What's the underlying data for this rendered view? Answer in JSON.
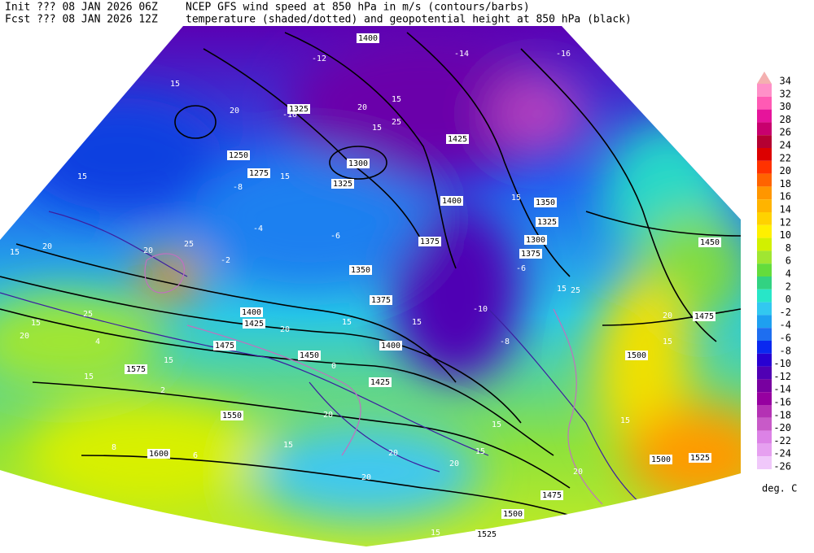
{
  "header": {
    "line1_left": "Init  ??? 08 JAN 2026 06Z",
    "line1_right": "NCEP GFS wind speed at 850 hPa in m/s (contours/barbs)",
    "line2_left": "Fcst ??? 08 JAN 2026 12Z",
    "line2_right": "temperature (shaded/dotted) and geopotential height at 850 hPa (black)"
  },
  "colorbar": {
    "levels": [
      34,
      32,
      30,
      28,
      26,
      24,
      22,
      20,
      18,
      16,
      14,
      12,
      10,
      8,
      6,
      4,
      2,
      0,
      -2,
      -4,
      -6,
      -8,
      -10,
      -12,
      -14,
      -16,
      -18,
      -20,
      -22,
      -24,
      -26
    ],
    "colors": [
      "#f4b0b0",
      "#ff90c8",
      "#ff5ab4",
      "#e6149b",
      "#c8006e",
      "#b40032",
      "#dc0000",
      "#ff3200",
      "#ff6400",
      "#ff9600",
      "#ffb400",
      "#ffd200",
      "#fff000",
      "#d2f000",
      "#a0e632",
      "#64dc3c",
      "#32d282",
      "#28e6c8",
      "#32c8f0",
      "#1ea0f0",
      "#1e6ef0",
      "#0a28f0",
      "#2800d2",
      "#5000b4",
      "#7800a0",
      "#9600a0",
      "#b432b4",
      "#c85ac8",
      "#dc82e6",
      "#e6a0f0",
      "#f0c8fa"
    ],
    "unit": "deg. C"
  },
  "map": {
    "height_labels": [
      "1400",
      "1325",
      "1250",
      "1275",
      "1300",
      "1325",
      "1425",
      "1400",
      "1375",
      "1350",
      "1325",
      "1300",
      "1375",
      "1450",
      "1350",
      "1375",
      "1400",
      "1425",
      "1475",
      "1450",
      "1400",
      "1425",
      "1475",
      "1500",
      "1550",
      "1575",
      "1600",
      "1500",
      "1525",
      "1475",
      "1500",
      "1525"
    ],
    "wind_labels": [
      "15",
      "20",
      "15",
      "15",
      "20",
      "15",
      "20",
      "25",
      "15",
      "20",
      "15",
      "25",
      "15",
      "25",
      "20",
      "15",
      "15",
      "15",
      "20",
      "15",
      "15",
      "20",
      "15",
      "20",
      "20",
      "20",
      "15",
      "15",
      "20",
      "25",
      "15",
      "25",
      "20",
      "15",
      "15",
      "15"
    ],
    "temp_labels": [
      "-12",
      "-14",
      "-16",
      "-10",
      "-8",
      "-6",
      "-4",
      "-2",
      "0",
      "2",
      "4",
      "6",
      "8",
      "-6",
      "-8",
      "-10"
    ]
  }
}
